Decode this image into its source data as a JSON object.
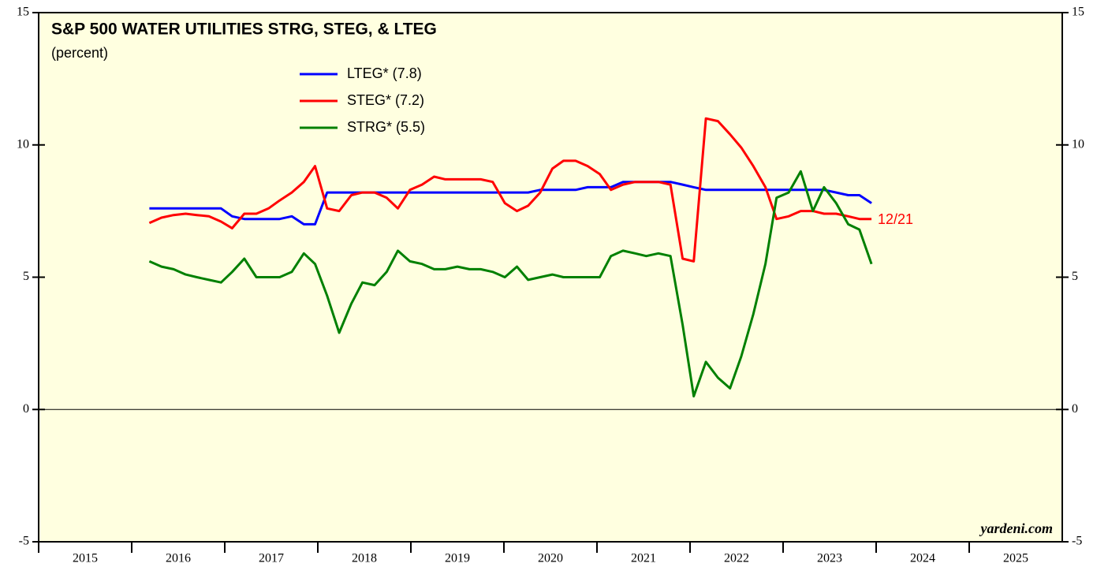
{
  "chart_data": {
    "type": "line",
    "title": "S&P 500 WATER UTILITIES STRG, STEG, & LTEG",
    "subtitle": "(percent)",
    "x": [
      2016.19,
      2016.32,
      2016.45,
      2016.58,
      2016.7,
      2016.83,
      2016.96,
      2017.08,
      2017.21,
      2017.34,
      2017.47,
      2017.59,
      2017.72,
      2017.85,
      2017.97,
      2018.1,
      2018.23,
      2018.36,
      2018.48,
      2018.61,
      2018.74,
      2018.86,
      2018.99,
      2019.12,
      2019.25,
      2019.37,
      2019.5,
      2019.63,
      2019.75,
      2019.88,
      2020.01,
      2020.14,
      2020.26,
      2020.39,
      2020.52,
      2020.64,
      2020.77,
      2020.9,
      2021.03,
      2021.15,
      2021.28,
      2021.41,
      2021.53,
      2021.66,
      2021.79,
      2021.92,
      2022.04,
      2022.17,
      2022.3,
      2022.43,
      2022.55,
      2022.68,
      2022.81,
      2022.93,
      2023.06,
      2023.19,
      2023.32,
      2023.44,
      2023.57,
      2023.7,
      2023.82,
      2023.95
    ],
    "series": [
      {
        "name": "LTEG* (7.8)",
        "color": "#0000ff",
        "values": [
          7.6,
          7.6,
          7.6,
          7.6,
          7.6,
          7.6,
          7.6,
          7.3,
          7.2,
          7.2,
          7.2,
          7.2,
          7.3,
          7.0,
          7.0,
          8.2,
          8.2,
          8.2,
          8.2,
          8.2,
          8.2,
          8.2,
          8.2,
          8.2,
          8.2,
          8.2,
          8.2,
          8.2,
          8.2,
          8.2,
          8.2,
          8.2,
          8.2,
          8.3,
          8.3,
          8.3,
          8.3,
          8.4,
          8.4,
          8.4,
          8.6,
          8.6,
          8.6,
          8.6,
          8.6,
          8.5,
          8.4,
          8.3,
          8.3,
          8.3,
          8.3,
          8.3,
          8.3,
          8.3,
          8.3,
          8.3,
          8.3,
          8.3,
          8.2,
          8.1,
          8.1,
          7.8
        ]
      },
      {
        "name": "STEG* (7.2)",
        "color": "#ff0000",
        "values": [
          7.05,
          7.25,
          7.35,
          7.4,
          7.35,
          7.3,
          7.1,
          6.85,
          7.4,
          7.4,
          7.6,
          7.9,
          8.2,
          8.6,
          9.2,
          7.6,
          7.5,
          8.1,
          8.2,
          8.2,
          8.0,
          7.6,
          8.3,
          8.5,
          8.8,
          8.7,
          8.7,
          8.7,
          8.7,
          8.6,
          7.8,
          7.5,
          7.7,
          8.2,
          9.1,
          9.4,
          9.4,
          9.2,
          8.9,
          8.3,
          8.5,
          8.6,
          8.6,
          8.6,
          8.5,
          5.7,
          5.6,
          11.0,
          10.9,
          10.4,
          9.9,
          9.2,
          8.4,
          7.2,
          7.3,
          7.5,
          7.5,
          7.4,
          7.4,
          7.3,
          7.2,
          7.2
        ]
      },
      {
        "name": "STRG* (5.5)",
        "color": "#008000",
        "values": [
          5.6,
          5.4,
          5.3,
          5.1,
          5.0,
          4.9,
          4.8,
          5.2,
          5.7,
          5.0,
          5.0,
          5.0,
          5.2,
          5.9,
          5.5,
          4.3,
          2.9,
          4.0,
          4.8,
          4.7,
          5.2,
          6.0,
          5.6,
          5.5,
          5.3,
          5.3,
          5.4,
          5.3,
          5.3,
          5.2,
          5.0,
          5.4,
          4.9,
          5.0,
          5.1,
          5.0,
          5.0,
          5.0,
          5.0,
          5.8,
          6.0,
          5.9,
          5.8,
          5.9,
          5.8,
          3.2,
          0.5,
          1.8,
          1.2,
          0.8,
          2.0,
          3.6,
          5.5,
          8.0,
          8.2,
          9.0,
          7.5,
          8.4,
          7.8,
          7.0,
          6.8,
          5.5
        ]
      }
    ],
    "xlim": [
      2015,
      2026
    ],
    "xticks": [
      2015,
      2016,
      2017,
      2018,
      2019,
      2020,
      2021,
      2022,
      2023,
      2024,
      2025
    ],
    "ylim": [
      -5,
      15
    ],
    "yticks": [
      -5,
      0,
      5,
      10,
      15
    ],
    "annotations": [
      {
        "text": "12/21"
      },
      {
        "text": "yardeni.com"
      }
    ]
  }
}
